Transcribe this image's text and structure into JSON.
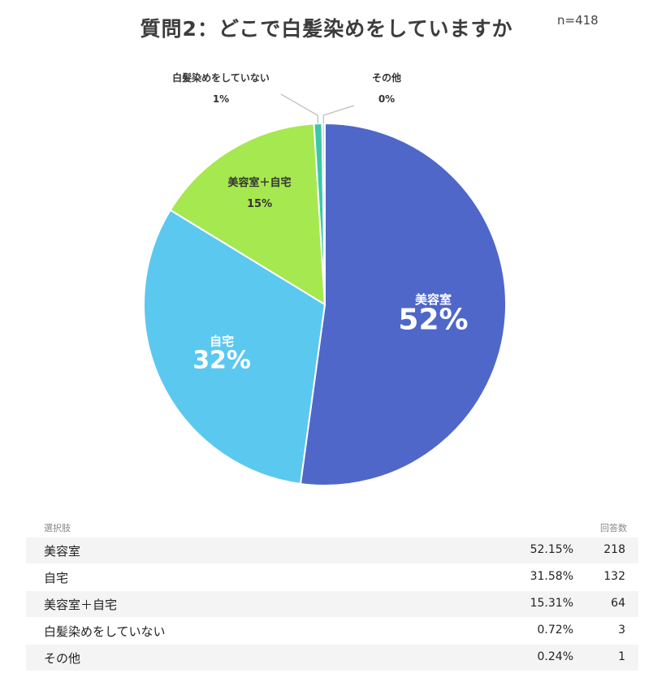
{
  "title": "質問2：どこで白髪染めをしていますか",
  "sample_size": "n=418",
  "chart_data": {
    "type": "pie",
    "title": "質問2：どこで白髪染めをしていますか",
    "slices": [
      {
        "label": "美容室",
        "value": 52.15,
        "pct_label": "52%",
        "color": "#4f67c8"
      },
      {
        "label": "自宅",
        "value": 31.58,
        "pct_label": "32%",
        "color": "#5bc8f0"
      },
      {
        "label": "美容室＋自宅",
        "value": 15.31,
        "pct_label": "15%",
        "color": "#a6e84f"
      },
      {
        "label": "白髪染めをしていない",
        "value": 0.72,
        "pct_label": "1%",
        "color": "#3cc8a8"
      },
      {
        "label": "その他",
        "value": 0.24,
        "pct_label": "0%",
        "color": "#c8d8e8"
      }
    ]
  },
  "table": {
    "header_choice": "選択肢",
    "header_count": "回答数",
    "rows": [
      {
        "label": "美容室",
        "pct": "52.15%",
        "count": "218"
      },
      {
        "label": "自宅",
        "pct": "31.58%",
        "count": "132"
      },
      {
        "label": "美容室＋自宅",
        "pct": "15.31%",
        "count": "64"
      },
      {
        "label": "白髪染めをしていない",
        "pct": "0.72%",
        "count": "3"
      },
      {
        "label": "その他",
        "pct": "0.24%",
        "count": "1"
      }
    ]
  }
}
